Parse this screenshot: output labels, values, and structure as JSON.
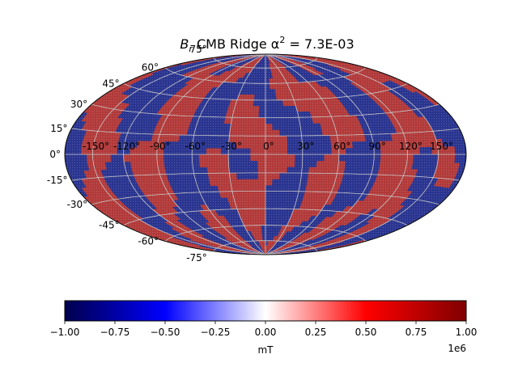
{
  "chart_data": {
    "type": "heatmap",
    "projection": "hammer",
    "title_symbol": "B",
    "title_subscript": "r",
    "title_text": " CMB Ridge α",
    "title_sup": "2",
    "title_value": " = 7.3E-03",
    "lon_ticks": [
      "-150°",
      "-120°",
      "-90°",
      "-60°",
      "-30°",
      "0°",
      "30°",
      "60°",
      "90°",
      "120°",
      "150°"
    ],
    "lat_ticks": [
      "75°",
      "60°",
      "45°",
      "30°",
      "15°",
      "0°",
      "-15°",
      "-30°",
      "-45°",
      "-60°",
      "-75°"
    ],
    "lon_tick_values": [
      -150,
      -120,
      -90,
      -60,
      -30,
      0,
      30,
      60,
      90,
      120,
      150
    ],
    "lat_tick_values": [
      75,
      60,
      45,
      30,
      15,
      0,
      -15,
      -30,
      -45,
      -60,
      -75
    ],
    "grid": true,
    "colormap": "seismic",
    "colormap_colors": [
      "#00004c",
      "#0000ff",
      "#ffffff",
      "#ff0000",
      "#800000"
    ],
    "colorbar": {
      "orientation": "horizontal",
      "range": [
        -1.0,
        1.0
      ],
      "ticks": [
        "−1.00",
        "−0.75",
        "−0.50",
        "−0.25",
        "0.00",
        "0.25",
        "0.50",
        "0.75",
        "1.00"
      ],
      "tick_values": [
        -1.0,
        -0.75,
        -0.5,
        -0.25,
        0.0,
        0.25,
        0.5,
        0.75,
        1.0
      ],
      "label": "mT",
      "offset_text": "1e6"
    }
  }
}
